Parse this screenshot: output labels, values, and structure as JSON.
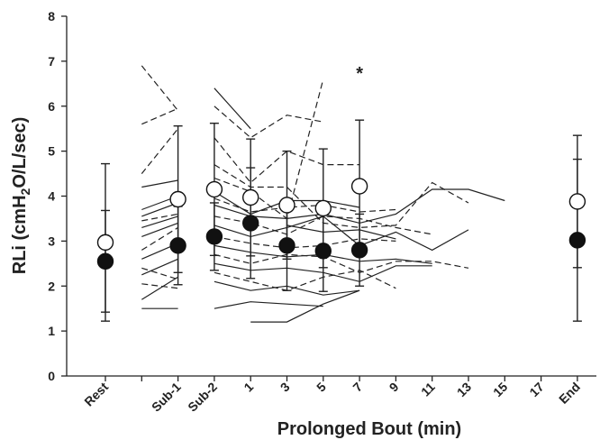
{
  "chart_data": {
    "type": "line",
    "title": "",
    "xlabel": "Prolonged Bout (min)",
    "ylabel_parts": {
      "main": "RLi (cmH",
      "sub": "2",
      "rest": "O/L/sec)"
    },
    "ylim": [
      0,
      8
    ],
    "yticks": [
      "0",
      "1",
      "2",
      "3",
      "4",
      "5",
      "6",
      "7",
      "8"
    ],
    "categories": [
      "Rest",
      "Sub-1",
      "Sub-2",
      "1",
      "3",
      "5",
      "7",
      "9",
      "11",
      "13",
      "15",
      "17",
      "End"
    ],
    "category_positions": [
      0,
      2,
      3,
      4,
      5,
      6,
      7,
      8,
      9,
      10,
      11,
      12,
      13
    ],
    "annotation": {
      "text": "*",
      "at_index": 6
    },
    "grid": false,
    "legend": "none",
    "series": [
      {
        "marker": "open-circle",
        "points": [
          {
            "i": 0,
            "y": 2.97,
            "err": 1.75
          },
          {
            "i": 1,
            "y": 3.93,
            "err": 1.63
          },
          {
            "i": 2,
            "y": 4.15,
            "err": 1.47
          },
          {
            "i": 3,
            "y": 3.97,
            "err": 1.3
          },
          {
            "i": 4,
            "y": 3.8,
            "err": 1.2
          },
          {
            "i": 5,
            "y": 3.73,
            "err": 1.32
          },
          {
            "i": 6,
            "y": 4.22,
            "err": 1.47
          },
          {
            "i": 12,
            "y": 3.88,
            "err": 1.47
          }
        ]
      },
      {
        "marker": "filled-circle",
        "points": [
          {
            "i": 0,
            "y": 2.55,
            "err": 1.13
          },
          {
            "i": 1,
            "y": 2.9,
            "err": 0.87
          },
          {
            "i": 2,
            "y": 3.1,
            "err": 0.75
          },
          {
            "i": 3,
            "y": 3.4,
            "err": 1.23
          },
          {
            "i": 4,
            "y": 2.9,
            "err": 1.0
          },
          {
            "i": 5,
            "y": 2.78,
            "err": 0.9
          },
          {
            "i": 6,
            "y": 2.8,
            "err": 0.8
          },
          {
            "i": 12,
            "y": 3.02,
            "err": 1.8
          }
        ]
      }
    ],
    "individual_traces": [
      {
        "dash": true,
        "points": [
          [
            1,
            6.9
          ],
          [
            2,
            5.9
          ]
        ]
      },
      {
        "dash": true,
        "points": [
          [
            1,
            5.6
          ],
          [
            2,
            5.95
          ]
        ]
      },
      {
        "dash": true,
        "points": [
          [
            1,
            4.5
          ],
          [
            2,
            5.5
          ]
        ]
      },
      {
        "dash": false,
        "points": [
          [
            1,
            4.2
          ],
          [
            2,
            4.35
          ]
        ]
      },
      {
        "dash": false,
        "points": [
          [
            1,
            3.7
          ],
          [
            2,
            4.0
          ]
        ]
      },
      {
        "dash": false,
        "points": [
          [
            1,
            3.55
          ],
          [
            2,
            3.85
          ]
        ]
      },
      {
        "dash": true,
        "points": [
          [
            1,
            3.45
          ],
          [
            2,
            3.6
          ]
        ]
      },
      {
        "dash": false,
        "points": [
          [
            1,
            3.3
          ],
          [
            2,
            3.55
          ]
        ]
      },
      {
        "dash": false,
        "points": [
          [
            1,
            3.1
          ],
          [
            2,
            3.4
          ]
        ]
      },
      {
        "dash": true,
        "points": [
          [
            1,
            2.8
          ],
          [
            2,
            3.3
          ]
        ]
      },
      {
        "dash": false,
        "points": [
          [
            1,
            2.6
          ],
          [
            2,
            2.95
          ]
        ]
      },
      {
        "dash": true,
        "points": [
          [
            1,
            2.4
          ],
          [
            2,
            2.15
          ]
        ]
      },
      {
        "dash": false,
        "points": [
          [
            1,
            2.25
          ],
          [
            2,
            2.6
          ]
        ]
      },
      {
        "dash": true,
        "points": [
          [
            1,
            2.05
          ],
          [
            2,
            1.95
          ]
        ]
      },
      {
        "dash": false,
        "points": [
          [
            1,
            1.7
          ],
          [
            2,
            2.2
          ]
        ]
      },
      {
        "dash": false,
        "points": [
          [
            1,
            1.5
          ],
          [
            2,
            1.5
          ]
        ]
      },
      {
        "dash": false,
        "points": [
          [
            3,
            6.4
          ],
          [
            4,
            5.5
          ]
        ]
      },
      {
        "dash": true,
        "points": [
          [
            3,
            6.0
          ],
          [
            4,
            5.3
          ],
          [
            5,
            5.8
          ],
          [
            6,
            5.65
          ]
        ]
      },
      {
        "dash": true,
        "points": [
          [
            3,
            5.3
          ],
          [
            4,
            4.3
          ],
          [
            5,
            5.0
          ],
          [
            6,
            4.7
          ],
          [
            7,
            4.7
          ]
        ]
      },
      {
        "dash": true,
        "points": [
          [
            3,
            4.4
          ],
          [
            4,
            4.1
          ],
          [
            5,
            3.5
          ],
          [
            6,
            6.6
          ]
        ]
      },
      {
        "dash": false,
        "points": [
          [
            3,
            4.1
          ],
          [
            4,
            3.6
          ],
          [
            5,
            3.9
          ],
          [
            6,
            3.9
          ],
          [
            7,
            3.75
          ]
        ]
      },
      {
        "dash": false,
        "points": [
          [
            3,
            3.8
          ],
          [
            4,
            3.55
          ],
          [
            5,
            3.5
          ],
          [
            6,
            3.6
          ],
          [
            7,
            3.4
          ],
          [
            8,
            3.6
          ],
          [
            9,
            4.15
          ],
          [
            10,
            4.15
          ],
          [
            11,
            3.9
          ]
        ]
      },
      {
        "dash": true,
        "points": [
          [
            3,
            3.55
          ],
          [
            4,
            3.4
          ],
          [
            5,
            3.15
          ],
          [
            6,
            3.55
          ],
          [
            7,
            3.5
          ],
          [
            8,
            3.3
          ],
          [
            9,
            3.15
          ]
        ]
      },
      {
        "dash": false,
        "points": [
          [
            3,
            3.35
          ],
          [
            4,
            3.1
          ],
          [
            5,
            3.3
          ],
          [
            6,
            3.55
          ],
          [
            7,
            2.9
          ],
          [
            8,
            3.2
          ],
          [
            9,
            2.8
          ],
          [
            10,
            3.25
          ]
        ]
      },
      {
        "dash": true,
        "points": [
          [
            3,
            3.1
          ],
          [
            4,
            2.95
          ],
          [
            5,
            2.85
          ],
          [
            6,
            2.9
          ],
          [
            7,
            3.05
          ],
          [
            8,
            3.0
          ]
        ]
      },
      {
        "dash": false,
        "points": [
          [
            3,
            2.9
          ],
          [
            4,
            2.75
          ],
          [
            5,
            2.65
          ],
          [
            6,
            2.7
          ],
          [
            7,
            2.55
          ],
          [
            8,
            2.6
          ],
          [
            9,
            2.5
          ]
        ]
      },
      {
        "dash": true,
        "points": [
          [
            3,
            2.7
          ],
          [
            4,
            2.5
          ],
          [
            5,
            2.7
          ],
          [
            6,
            2.65
          ],
          [
            7,
            2.3
          ],
          [
            8,
            2.55
          ],
          [
            9,
            2.55
          ],
          [
            10,
            2.4
          ]
        ]
      },
      {
        "dash": false,
        "points": [
          [
            3,
            2.5
          ],
          [
            4,
            2.35
          ],
          [
            5,
            2.4
          ],
          [
            6,
            2.3
          ],
          [
            7,
            2.1
          ],
          [
            8,
            2.45
          ],
          [
            9,
            2.45
          ]
        ]
      },
      {
        "dash": true,
        "points": [
          [
            3,
            2.3
          ],
          [
            4,
            2.1
          ],
          [
            5,
            1.9
          ],
          [
            6,
            2.2
          ],
          [
            7,
            2.35
          ],
          [
            8,
            1.95
          ]
        ]
      },
      {
        "dash": false,
        "points": [
          [
            3,
            2.1
          ],
          [
            4,
            1.9
          ],
          [
            5,
            2.0
          ],
          [
            6,
            1.8
          ],
          [
            7,
            1.9
          ]
        ]
      },
      {
        "dash": false,
        "points": [
          [
            3,
            1.5
          ],
          [
            4,
            1.65
          ],
          [
            5,
            1.6
          ],
          [
            6,
            1.55
          ]
        ]
      },
      {
        "dash": false,
        "points": [
          [
            4,
            1.2
          ],
          [
            5,
            1.2
          ],
          [
            6,
            1.6
          ],
          [
            7,
            1.9
          ]
        ]
      },
      {
        "dash": true,
        "points": [
          [
            3,
            3.95
          ],
          [
            4,
            3.65
          ],
          [
            5,
            3.75
          ],
          [
            6,
            3.8
          ],
          [
            7,
            3.65
          ],
          [
            8,
            3.7
          ]
        ]
      },
      {
        "dash": true,
        "points": [
          [
            3,
            4.7
          ],
          [
            4,
            4.2
          ],
          [
            5,
            4.2
          ],
          [
            6,
            3.4
          ],
          [
            7,
            3.3
          ],
          [
            8,
            3.35
          ],
          [
            9,
            4.3
          ],
          [
            10,
            3.85
          ]
        ]
      },
      {
        "dash": false,
        "points": [
          [
            5,
            3.35
          ],
          [
            6,
            3.2
          ],
          [
            7,
            3.25
          ],
          [
            8,
            3.05
          ]
        ]
      }
    ]
  }
}
